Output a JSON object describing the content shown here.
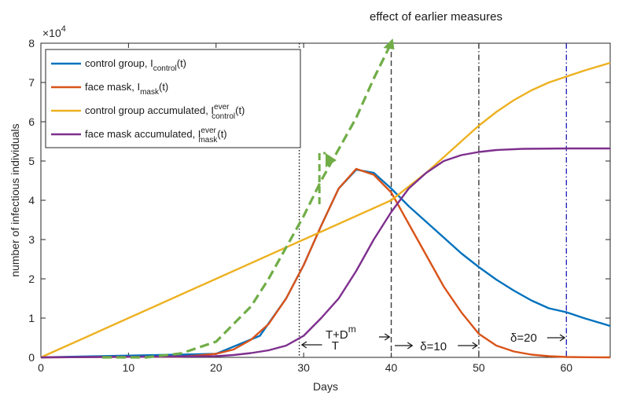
{
  "chart_data": {
    "type": "line",
    "xlabel": "Days",
    "ylabel": "number of infectious individuals",
    "xlim": [
      0,
      65
    ],
    "ylim": [
      0,
      80000
    ],
    "x_ticks": [
      0,
      10,
      20,
      30,
      40,
      50,
      60
    ],
    "x_tick_labels": [
      "0",
      "10",
      "20",
      "30",
      "40",
      "50",
      "60"
    ],
    "y_ticks": [
      0,
      10000,
      20000,
      30000,
      40000,
      50000,
      60000,
      70000,
      80000
    ],
    "y_tick_labels": [
      "0",
      "1",
      "2",
      "3",
      "4",
      "5",
      "6",
      "7",
      "8"
    ],
    "y_exponent": {
      "base": "×10",
      "power": "4"
    },
    "grid": false,
    "legend_position": "top-left",
    "series": [
      {
        "name": "control group, I",
        "name_sub": "control",
        "name_sup": "",
        "name_suffix": "(t)",
        "color": "#0072BD",
        "style": "solid",
        "x": [
          0,
          20,
          25,
          28,
          30,
          32,
          34,
          36,
          38,
          40,
          42,
          44,
          46,
          48,
          50,
          52,
          54,
          56,
          58,
          60,
          62,
          65
        ],
        "y": [
          0,
          900,
          5500,
          15000,
          23500,
          33500,
          43000,
          47800,
          47000,
          43000,
          38500,
          34500,
          30500,
          26500,
          23000,
          19800,
          17000,
          14500,
          12500,
          11500,
          10000,
          8000
        ]
      },
      {
        "name": "face mask, I",
        "name_sub": "mask",
        "name_sup": "",
        "name_suffix": "(t)",
        "color": "#D95319",
        "style": "solid",
        "x": [
          0,
          16,
          18,
          20,
          22,
          24,
          26,
          28,
          30,
          32,
          34,
          36,
          38,
          40,
          42,
          44,
          46,
          48,
          50,
          52,
          54,
          56,
          58,
          60,
          62,
          65
        ],
        "y": [
          0,
          200,
          500,
          900,
          2000,
          4500,
          8500,
          15000,
          23500,
          33500,
          43000,
          48000,
          46500,
          42000,
          34000,
          26000,
          18000,
          11500,
          6000,
          3000,
          1500,
          700,
          300,
          100,
          50,
          0
        ]
      },
      {
        "name": "control group accumulated, I",
        "name_sub": "control",
        "name_sup": "ever",
        "name_suffix": "(t)",
        "color": "#EDB120",
        "style": "solid",
        "x": [
          0,
          40,
          42,
          44,
          46,
          48,
          50,
          52,
          54,
          56,
          58,
          60,
          62,
          65
        ],
        "y": [
          0,
          40000,
          43500,
          47000,
          51000,
          55000,
          59000,
          62500,
          65500,
          68000,
          70000,
          71500,
          73000,
          75000
        ]
      },
      {
        "name": "face mask accumulated, I",
        "name_sub": "mask",
        "name_sup": "ever",
        "name_suffix": "(t)",
        "color": "#7E2F8E",
        "style": "solid",
        "x": [
          0,
          20,
          22,
          24,
          26,
          28,
          30,
          32,
          34,
          36,
          38,
          40,
          42,
          44,
          46,
          48,
          50,
          52,
          55,
          60,
          65
        ],
        "y": [
          0,
          300,
          600,
          1100,
          1800,
          3000,
          5500,
          10000,
          15000,
          22000,
          30000,
          37000,
          43000,
          47000,
          50000,
          51500,
          52300,
          52800,
          53100,
          53200,
          53200
        ]
      },
      {
        "name": "effect of earlier measures",
        "color": "#70AD47",
        "style": "dashed",
        "x": [
          7,
          12,
          16,
          20,
          24,
          26,
          28,
          30,
          32,
          34,
          36,
          38,
          40
        ],
        "y": [
          0,
          0,
          1000,
          4000,
          13000,
          20000,
          28000,
          36000,
          45000,
          53000,
          61000,
          71000,
          80000
        ]
      }
    ],
    "vlines": [
      {
        "x": 29.5,
        "style": "dotted",
        "color": "#1a1a1a"
      },
      {
        "x": 40,
        "style": "dashed",
        "color": "#3a3a3a"
      },
      {
        "x": 50,
        "style": "dashdot",
        "color": "#3a3a3a"
      },
      {
        "x": 60,
        "style": "dashdot",
        "color": "#2a2ab8"
      }
    ],
    "annotations": {
      "title_text": "effect of earlier measures",
      "t_label": "T",
      "td_label": "T+D",
      "td_sup": "m",
      "delta10_label": "δ=10",
      "delta20_label": "δ=20"
    }
  }
}
